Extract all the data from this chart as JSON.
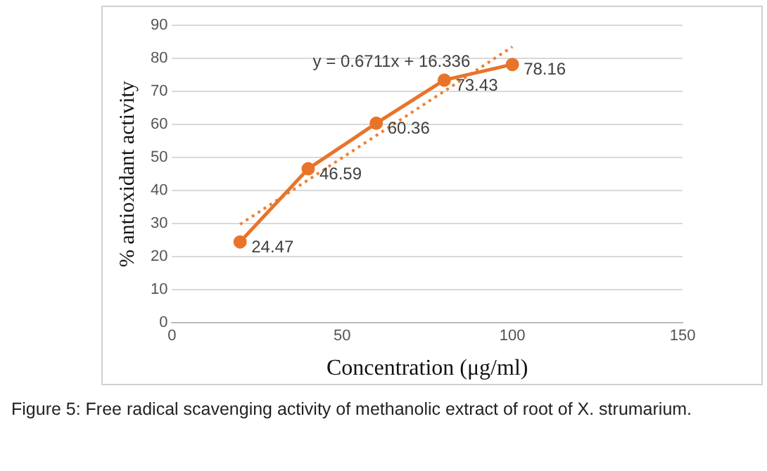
{
  "chart_data": {
    "type": "line",
    "xlabel": "Concentration (μg/ml)",
    "ylabel": "% antioxidant activity",
    "xlim": [
      0,
      150
    ],
    "xticks": [
      0,
      50,
      100,
      150
    ],
    "ylim": [
      0,
      90
    ],
    "yticks": [
      0,
      10,
      20,
      30,
      40,
      50,
      60,
      70,
      80,
      90
    ],
    "grid": "y",
    "legend": false,
    "series": [
      {
        "type": "line",
        "color": "#e8742a",
        "x": [
          20,
          40,
          60,
          80,
          100
        ],
        "values": [
          24.47,
          46.59,
          60.36,
          73.43,
          78.16
        ],
        "value_labels": [
          "24.47",
          "46.59",
          "60.36",
          "73.43",
          "78.16"
        ],
        "marker": "circle",
        "line_style": "solid"
      },
      {
        "type": "line",
        "color": "#f08030",
        "x": [
          20,
          100
        ],
        "values": [
          29.8,
          83.5
        ],
        "marker": "none",
        "line_style": "dotted"
      }
    ],
    "annotations": [
      "y = 0.6711x + 16.336",
      "Figure 5: Free radical scavenging activity of methanolic extract of root of X. strumarium."
    ]
  }
}
